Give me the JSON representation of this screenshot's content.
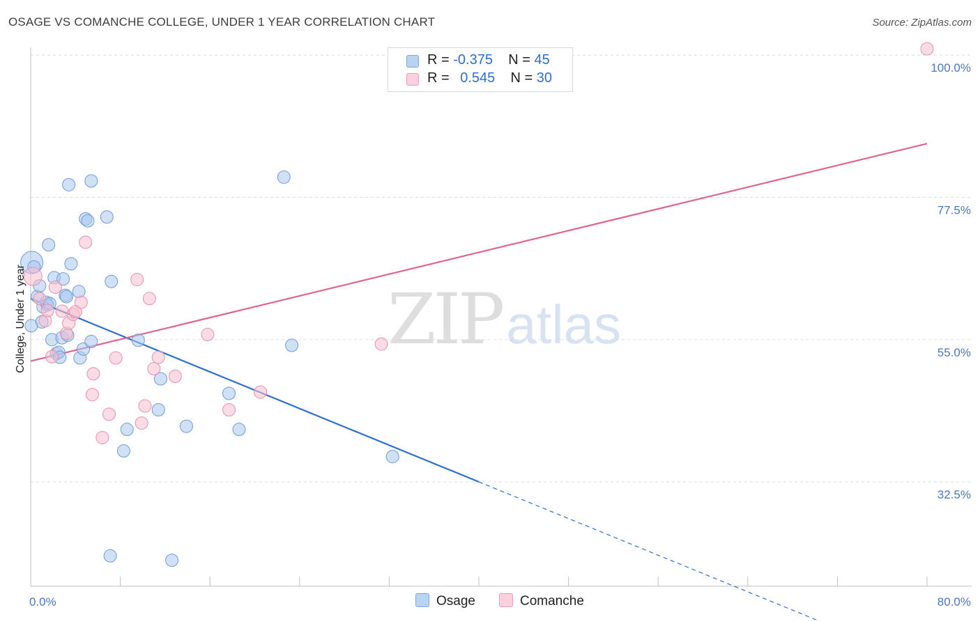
{
  "title": "OSAGE VS COMANCHE COLLEGE, UNDER 1 YEAR CORRELATION CHART",
  "source": "Source: ZipAtlas.com",
  "watermark": {
    "zip": "ZIP",
    "atlas": "atlas"
  },
  "legend": {
    "rows": [
      {
        "r_label": "R =",
        "r_value": "-0.375",
        "n_label": "N =",
        "n_value": "45",
        "color": "#a9c8ef"
      },
      {
        "r_label": "R =",
        "r_value": "0.545",
        "n_label": "N =",
        "n_value": "30",
        "color": "#f7bfd0"
      }
    ]
  },
  "bottom_legend": [
    {
      "label": "Osage",
      "color": "#a9c8ef"
    },
    {
      "label": "Comanche",
      "color": "#f7bfd0"
    }
  ],
  "chart_data": {
    "type": "scatter",
    "xlabel": "",
    "ylabel": "College, Under 1 year",
    "xlim": [
      0,
      80
    ],
    "ylim": [
      16,
      102
    ],
    "x_tick_labels": [
      {
        "value": 0,
        "label": "0.0%"
      },
      {
        "value": 80,
        "label": "80.0%"
      }
    ],
    "y_tick_labels": [
      {
        "value": 100,
        "label": "100.0%"
      },
      {
        "value": 77.5,
        "label": "77.5%"
      },
      {
        "value": 55,
        "label": "55.0%"
      },
      {
        "value": 32.5,
        "label": "32.5%"
      }
    ],
    "grid": true,
    "series": [
      {
        "name": "Osage",
        "color": "#a9c8ef",
        "stroke": "#6f9bd8",
        "line_color": "#2c6fd1",
        "points": [
          [
            0.1,
            67.2
          ],
          [
            0.3,
            66.5
          ],
          [
            0.6,
            61.8
          ],
          [
            0.8,
            63.5
          ],
          [
            1.0,
            57.8
          ],
          [
            1.1,
            60.2
          ],
          [
            1.4,
            60.9
          ],
          [
            1.5,
            60.5
          ],
          [
            1.6,
            70.0
          ],
          [
            1.7,
            60.7
          ],
          [
            1.9,
            55.0
          ],
          [
            2.1,
            64.8
          ],
          [
            2.3,
            52.8
          ],
          [
            2.5,
            53.0
          ],
          [
            2.6,
            52.2
          ],
          [
            2.8,
            55.3
          ],
          [
            2.9,
            64.6
          ],
          [
            3.1,
            62.0
          ],
          [
            3.2,
            61.8
          ],
          [
            3.3,
            55.7
          ],
          [
            3.4,
            79.5
          ],
          [
            3.6,
            67.0
          ],
          [
            4.3,
            62.6
          ],
          [
            4.4,
            52.1
          ],
          [
            4.7,
            53.5
          ],
          [
            4.9,
            74.1
          ],
          [
            5.1,
            73.8
          ],
          [
            5.4,
            80.1
          ],
          [
            5.4,
            54.7
          ],
          [
            6.8,
            74.4
          ],
          [
            7.1,
            20.8
          ],
          [
            7.2,
            64.2
          ],
          [
            8.3,
            37.4
          ],
          [
            8.6,
            40.8
          ],
          [
            9.6,
            54.9
          ],
          [
            11.4,
            43.9
          ],
          [
            11.6,
            48.8
          ],
          [
            12.6,
            20.1
          ],
          [
            13.9,
            41.3
          ],
          [
            17.7,
            46.5
          ],
          [
            18.6,
            40.8
          ],
          [
            22.6,
            80.7
          ],
          [
            23.3,
            54.1
          ],
          [
            32.3,
            36.5
          ],
          [
            0.05,
            57.2
          ]
        ],
        "trend": {
          "x": [
            0,
            40
          ],
          "y": [
            61.5,
            32.5
          ],
          "dashed_to": {
            "x": 70.5,
            "y": 10.4
          }
        }
      },
      {
        "name": "Comanche",
        "color": "#f7bfd0",
        "stroke": "#e890ad",
        "line_color": "#e0648e",
        "points": [
          [
            0.2,
            65.0
          ],
          [
            0.8,
            61.5
          ],
          [
            1.3,
            58.0
          ],
          [
            1.5,
            59.6
          ],
          [
            1.9,
            52.3
          ],
          [
            2.2,
            63.3
          ],
          [
            2.8,
            59.5
          ],
          [
            3.2,
            56.0
          ],
          [
            3.4,
            57.6
          ],
          [
            3.8,
            59.0
          ],
          [
            4.0,
            59.4
          ],
          [
            4.5,
            60.9
          ],
          [
            4.9,
            70.4
          ],
          [
            5.6,
            49.6
          ],
          [
            5.5,
            46.3
          ],
          [
            6.4,
            39.5
          ],
          [
            7.0,
            43.2
          ],
          [
            7.6,
            52.1
          ],
          [
            9.5,
            64.5
          ],
          [
            9.9,
            41.8
          ],
          [
            10.2,
            44.5
          ],
          [
            10.6,
            61.5
          ],
          [
            11.0,
            50.4
          ],
          [
            11.4,
            52.2
          ],
          [
            12.9,
            49.2
          ],
          [
            15.8,
            55.8
          ],
          [
            17.7,
            43.9
          ],
          [
            20.5,
            46.7
          ],
          [
            31.3,
            54.3
          ],
          [
            80.0,
            101.0
          ]
        ],
        "trend": {
          "x": [
            0,
            80
          ],
          "y": [
            51.6,
            86.0
          ]
        }
      }
    ]
  }
}
